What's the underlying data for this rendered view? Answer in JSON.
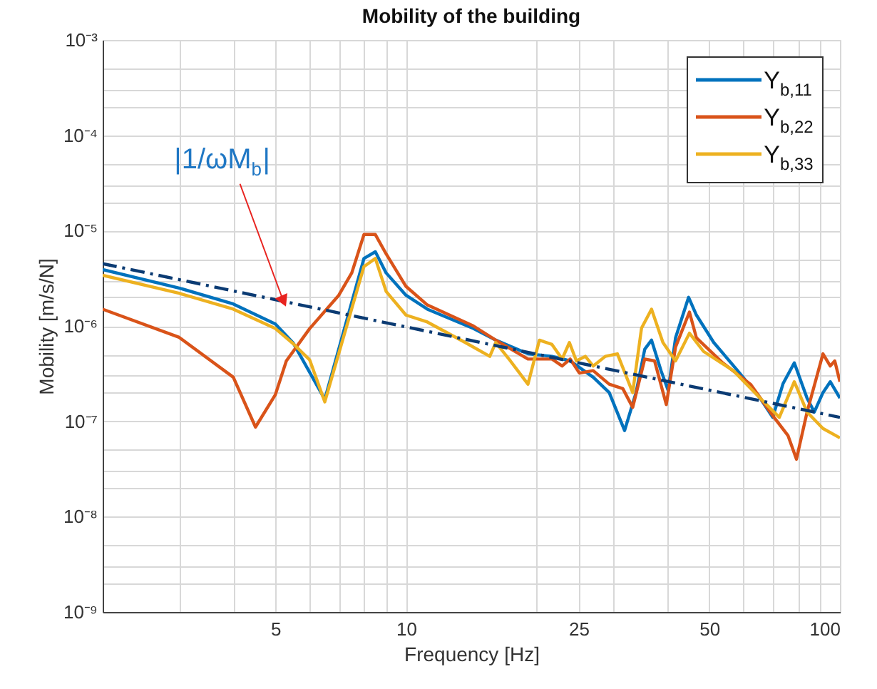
{
  "chart_data": {
    "type": "line",
    "title": "Mobility of the building",
    "xlabel": "Frequency [Hz]",
    "ylabel": "Mobility [m/s/N]",
    "log": "xy",
    "grid": true,
    "legend": "top right",
    "xlim": [
      2,
      100
    ],
    "xticks": [
      {
        "value": 2,
        "label": null
      },
      {
        "value": 3,
        "label": null
      },
      {
        "value": 4,
        "label": null
      },
      5,
      {
        "value": 6,
        "label": null
      },
      {
        "value": 7,
        "label": null
      },
      {
        "value": 8,
        "label": null
      },
      {
        "value": 9,
        "label": null
      },
      10,
      {
        "value": 20,
        "label": null
      },
      25,
      {
        "value": 30,
        "label": null
      },
      {
        "value": 40,
        "label": null
      },
      50,
      {
        "value": 60,
        "label": null
      },
      {
        "value": 70,
        "label": null
      },
      {
        "value": 80,
        "label": null
      },
      {
        "value": 90,
        "label": null
      },
      100
    ],
    "ylim": [
      1e-09,
      0.001
    ],
    "yticks": [
      {
        "value": 1e-09,
        "label": "10⁻⁹"
      },
      {
        "value": 2e-09,
        "label": null
      },
      {
        "value": 3e-09,
        "label": null
      },
      {
        "value": 5e-09,
        "label": null
      },
      {
        "value": 1e-08,
        "label": "10⁻⁸"
      },
      {
        "value": 2e-08,
        "label": null
      },
      {
        "value": 3e-08,
        "label": null
      },
      {
        "value": 5e-08,
        "label": null
      },
      {
        "value": 1e-07,
        "label": "10⁻⁷"
      },
      {
        "value": 2e-07,
        "label": null
      },
      {
        "value": 3e-07,
        "label": null
      },
      {
        "value": 5e-07,
        "label": null
      },
      {
        "value": 1e-06,
        "label": "10⁻⁶"
      },
      {
        "value": 2e-06,
        "label": null
      },
      {
        "value": 3e-06,
        "label": null
      },
      {
        "value": 5e-06,
        "label": null
      },
      {
        "value": 1e-05,
        "label": "10⁻⁵"
      },
      {
        "value": 2e-05,
        "label": null
      },
      {
        "value": 3e-05,
        "label": null
      },
      {
        "value": 5e-05,
        "label": null
      },
      {
        "value": 0.0001,
        "label": "10⁻⁴"
      },
      {
        "value": 0.0002,
        "label": null
      },
      {
        "value": 0.0003,
        "label": null
      },
      {
        "value": 0.0005,
        "label": null
      },
      {
        "value": 0.001,
        "label": "10⁻³"
      }
    ],
    "series": [
      {
        "name": "Y$_{b,11}$",
        "color": "#0072bd",
        "x": [
          2,
          3,
          4,
          5,
          5.5,
          6.5,
          8,
          8.5,
          9,
          10,
          11.2,
          14.3,
          16.1,
          19.1,
          21.7,
          23.9,
          27,
          29.4,
          31.9,
          33.9,
          35.5,
          36.8,
          38.7,
          40.2,
          41.8,
          44.8,
          46.7,
          51.2,
          58.1,
          65.5,
          70,
          74,
          78.5,
          84,
          87.3,
          91.4,
          95,
          100
        ],
        "values": [
          3.9e-06,
          2.5e-06,
          1.7e-06,
          1.05e-06,
          6.6e-07,
          1.7e-07,
          5.1e-06,
          6e-06,
          3.6e-06,
          2.1e-06,
          1.5e-06,
          9.4e-07,
          7.1e-07,
          5.1e-07,
          4.8e-07,
          4.3e-07,
          2.9e-07,
          2e-07,
          8e-08,
          2e-07,
          5.7e-07,
          7.1e-07,
          3.4e-07,
          2.1e-07,
          7.5e-07,
          2e-06,
          1.3e-06,
          6.7e-07,
          3.4e-07,
          1.75e-07,
          1.1e-07,
          2.5e-07,
          4.1e-07,
          1.75e-07,
          1.25e-07,
          2e-07,
          2.6e-07,
          1.75e-07
        ]
      },
      {
        "name": "Y$_{b,22}$",
        "color": "#d95319",
        "x": [
          2,
          3,
          4,
          4.5,
          5,
          5.3,
          6,
          7,
          7.5,
          8,
          8.5,
          9,
          10,
          11.2,
          14.3,
          16.1,
          19.1,
          21.7,
          22.9,
          23.9,
          25.1,
          27,
          29.4,
          31.6,
          33.3,
          35.5,
          37.4,
          39.8,
          41.8,
          45,
          46.7,
          53.7,
          62.2,
          70.5,
          75.9,
          79.4,
          84,
          91.4,
          95,
          97.3,
          100
        ],
        "values": [
          1.5e-06,
          7.6e-07,
          2.9e-07,
          8.7e-08,
          1.9e-07,
          4.3e-07,
          9.4e-07,
          2.1e-06,
          3.6e-06,
          9.1e-06,
          9.1e-06,
          5.7e-06,
          2.6e-06,
          1.66e-06,
          1e-06,
          7.1e-07,
          4.5e-07,
          4.5e-07,
          3.8e-07,
          4.5e-07,
          3.2e-07,
          3.4e-07,
          2.45e-07,
          2.2e-07,
          1.4e-07,
          4.5e-07,
          4.3e-07,
          1.5e-07,
          6e-07,
          1.4e-06,
          7.5e-07,
          4.1e-07,
          2.45e-07,
          1.1e-07,
          7.1e-08,
          4e-08,
          1.25e-07,
          5.1e-07,
          3.8e-07,
          4.3e-07,
          2.6e-07
        ]
      },
      {
        "name": "Y$_{b,33}$",
        "color": "#edb120",
        "x": [
          2,
          3,
          4,
          5,
          5.5,
          6,
          6.5,
          8,
          8.5,
          9,
          10,
          11.2,
          13.7,
          15.6,
          16.1,
          17.4,
          19.1,
          20.3,
          21.7,
          22.9,
          23.8,
          24.7,
          25.9,
          27,
          28.8,
          30.7,
          33.3,
          34.9,
          36.8,
          39.1,
          41.8,
          45,
          48.5,
          56.8,
          65.5,
          72.5,
          78.5,
          84,
          91.4,
          100
        ],
        "values": [
          3.4e-06,
          2.2e-06,
          1.5e-06,
          9.4e-07,
          6.5e-07,
          4.4e-07,
          1.6e-07,
          4.2e-06,
          5.1e-06,
          2.3e-06,
          1.3e-06,
          1.1e-06,
          6.7e-07,
          4.8e-07,
          6.7e-07,
          4.3e-07,
          2.45e-07,
          7.1e-07,
          6.4e-07,
          4.5e-07,
          6.7e-07,
          4.3e-07,
          4.8e-07,
          3.8e-07,
          4.8e-07,
          5.1e-07,
          2e-07,
          9.5e-07,
          1.5e-06,
          6.7e-07,
          4.3e-07,
          8.4e-07,
          5.4e-07,
          3.4e-07,
          1.75e-07,
          1.1e-07,
          2.6e-07,
          1.25e-07,
          8.4e-08,
          6.7e-08
        ]
      },
      {
        "color": "#0b3b73",
        "line_style": "dashdot",
        "x": [
          2,
          100
        ],
        "values": [
          4.5e-06,
          1.1e-07
        ]
      }
    ],
    "annotations": [
      {
        "text": "|1/ωM$_{b}$|",
        "x": 5.2,
        "y": 1.9e-06
      }
    ]
  }
}
